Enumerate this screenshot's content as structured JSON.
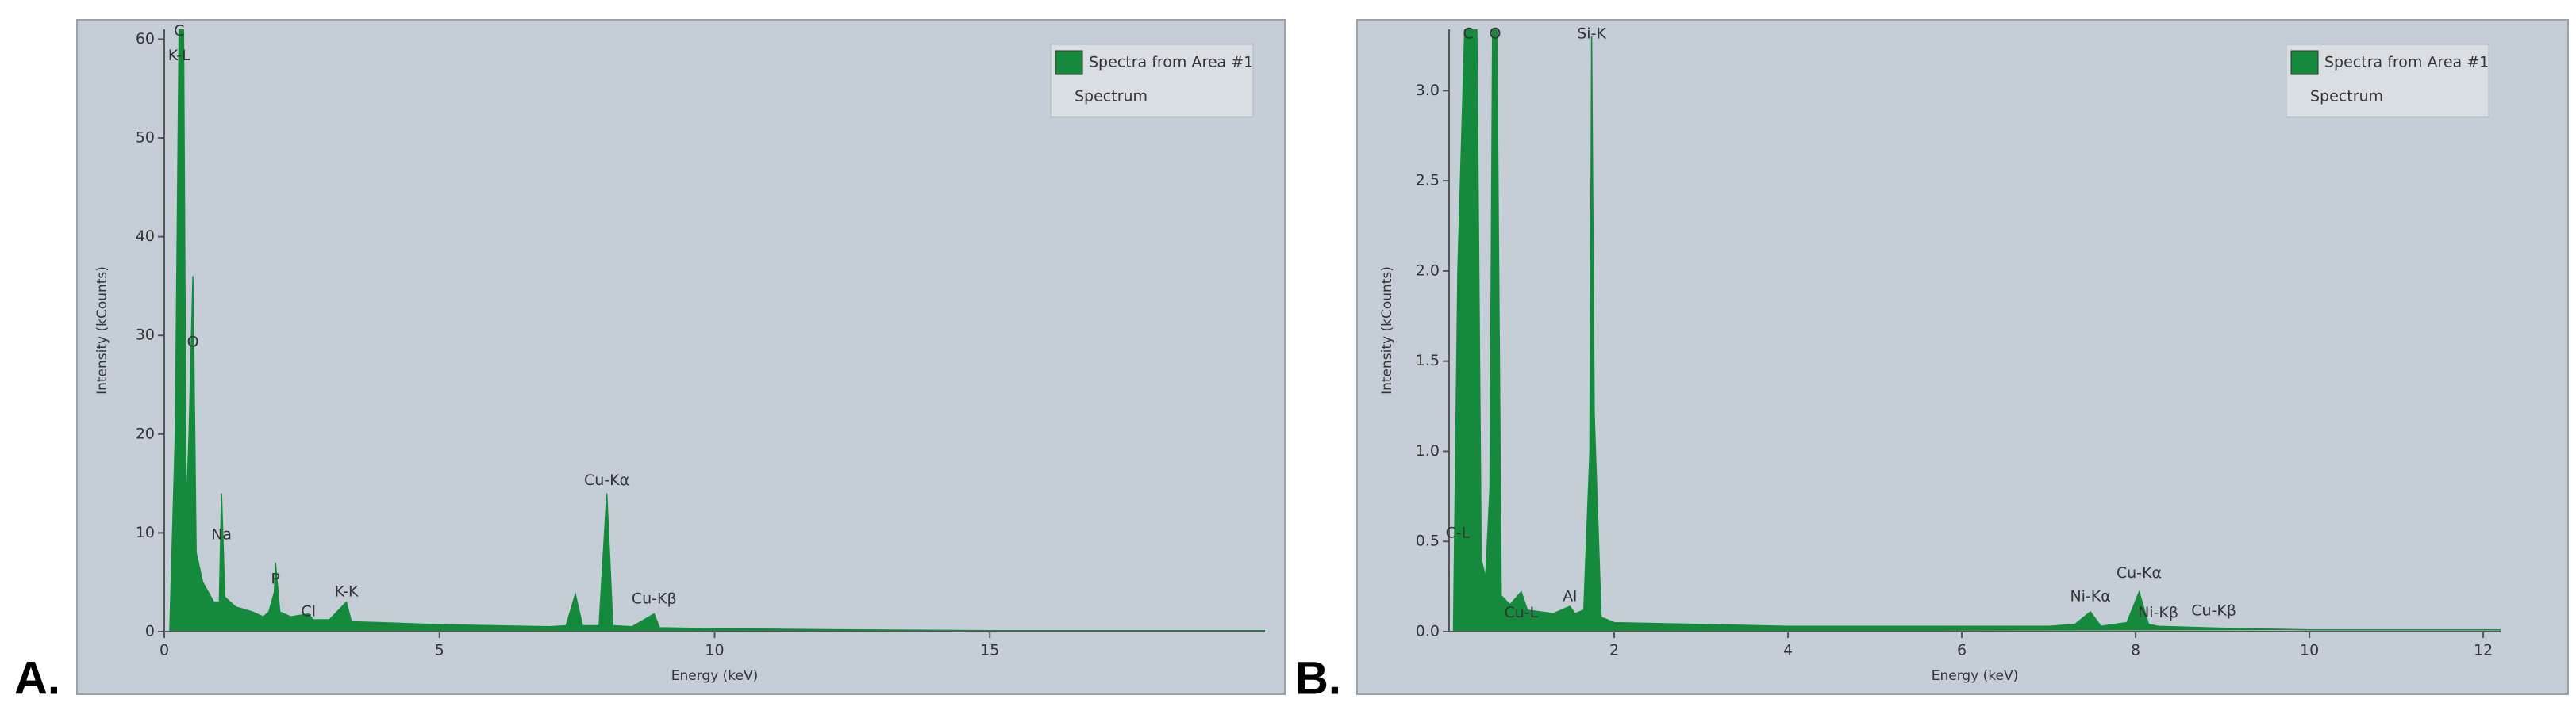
{
  "chart_data": [
    {
      "type": "area",
      "panel_label": "A.",
      "xlabel": "Energy (keV)",
      "ylabel": "Intensity (kCounts)",
      "legend_subtitle": "Spectrum",
      "legend": "upper right",
      "x": [
        0.1,
        0.2,
        0.27,
        0.35,
        0.4,
        0.45,
        0.52,
        0.58,
        0.7,
        0.9,
        1.0,
        1.04,
        1.1,
        1.3,
        1.6,
        1.8,
        1.9,
        2.0,
        2.02,
        2.1,
        2.3,
        2.62,
        2.7,
        3.0,
        3.31,
        3.4,
        4,
        5,
        6,
        7,
        7.3,
        7.47,
        7.6,
        7.9,
        8.04,
        8.15,
        8.5,
        8.9,
        9.0,
        10,
        12,
        15,
        20
      ],
      "series": [
        {
          "name": "Spectra from Area #1",
          "color": "#168a3c",
          "values": [
            0,
            20,
            61,
            61,
            12,
            20,
            36,
            8,
            5,
            3,
            3,
            14,
            3.5,
            2.5,
            2,
            1.5,
            2,
            4,
            7,
            2,
            1.5,
            1.8,
            1.2,
            1.2,
            3,
            1,
            0.9,
            0.7,
            0.6,
            0.5,
            0.6,
            3.8,
            0.6,
            0.6,
            14,
            0.6,
            0.5,
            1.8,
            0.4,
            0.3,
            0.2,
            0.1,
            0.1
          ]
        }
      ],
      "xlim": [
        0,
        20
      ],
      "ylim": [
        0,
        61
      ],
      "xticks": [
        0,
        5,
        10,
        15
      ],
      "yticks": [
        0,
        10,
        20,
        30,
        40,
        50,
        60
      ],
      "annotations": [
        {
          "text": "C",
          "x": 0.27,
          "y": 60
        },
        {
          "text": "K-L",
          "x": 0.27,
          "y": 57.5
        },
        {
          "text": "O",
          "x": 0.52,
          "y": 28.5
        },
        {
          "text": "Na",
          "x": 1.04,
          "y": 9
        },
        {
          "text": "P",
          "x": 2.02,
          "y": 4.5
        },
        {
          "text": "Cl",
          "x": 2.62,
          "y": 1.2
        },
        {
          "text": "K-K",
          "x": 3.31,
          "y": 3.2
        },
        {
          "text": "Cu-Kα",
          "x": 8.04,
          "y": 14.5
        },
        {
          "text": "Cu-Kβ",
          "x": 8.9,
          "y": 2.5
        }
      ]
    },
    {
      "type": "area",
      "panel_label": "B.",
      "xlabel": "Energy (keV)",
      "ylabel": "Intensity (kCounts)",
      "legend_subtitle": "Spectrum",
      "legend": "upper right",
      "x": [
        0.15,
        0.2,
        0.28,
        0.42,
        0.47,
        0.52,
        0.57,
        0.6,
        0.65,
        0.7,
        0.8,
        0.93,
        1.0,
        1.3,
        1.49,
        1.55,
        1.65,
        1.72,
        1.74,
        1.77,
        1.85,
        2,
        3,
        4,
        5,
        6,
        7,
        7.3,
        7.48,
        7.6,
        7.9,
        8.04,
        8.15,
        8.26,
        8.9,
        10,
        12.2
      ],
      "series": [
        {
          "name": "Spectra from Area #1",
          "color": "#168a3c",
          "values": [
            0,
            2,
            3.34,
            3.34,
            0.4,
            0.3,
            0.8,
            3.34,
            3.34,
            0.2,
            0.15,
            0.22,
            0.12,
            0.1,
            0.14,
            0.1,
            0.12,
            1.0,
            3.3,
            1.2,
            0.08,
            0.05,
            0.04,
            0.03,
            0.03,
            0.03,
            0.03,
            0.04,
            0.11,
            0.03,
            0.05,
            0.22,
            0.04,
            0.03,
            0.02,
            0.01,
            0.01
          ]
        }
      ],
      "xlim": [
        0.1,
        12.2
      ],
      "ylim": [
        0,
        3.34
      ],
      "xticks": [
        2,
        4,
        6,
        8,
        10,
        12
      ],
      "yticks": [
        {
          "value": 0,
          "label": "0.0"
        },
        {
          "value": 0.5,
          "label": "0.5"
        },
        {
          "value": 1,
          "label": "1.0"
        },
        {
          "value": 1.5,
          "label": "1.5"
        },
        {
          "value": 2,
          "label": "2.0"
        },
        {
          "value": 2.5,
          "label": "2.5"
        },
        {
          "value": 3,
          "label": "3.0"
        }
      ],
      "annotations": [
        {
          "text": "C",
          "x": 0.32,
          "y": 3.27
        },
        {
          "text": "O",
          "x": 0.63,
          "y": 3.27
        },
        {
          "text": "Si-K",
          "x": 1.74,
          "y": 3.27
        },
        {
          "text": "C-L",
          "x": 0.2,
          "y": 0.5
        },
        {
          "text": "Cu-L",
          "x": 0.93,
          "y": 0.06
        },
        {
          "text": "Al",
          "x": 1.49,
          "y": 0.15
        },
        {
          "text": "Ni-Kα",
          "x": 7.48,
          "y": 0.15
        },
        {
          "text": "Cu-Kα",
          "x": 8.04,
          "y": 0.28
        },
        {
          "text": "Ni-Kβ",
          "x": 8.26,
          "y": 0.06
        },
        {
          "text": "Cu-Kβ",
          "x": 8.9,
          "y": 0.07
        }
      ]
    }
  ]
}
